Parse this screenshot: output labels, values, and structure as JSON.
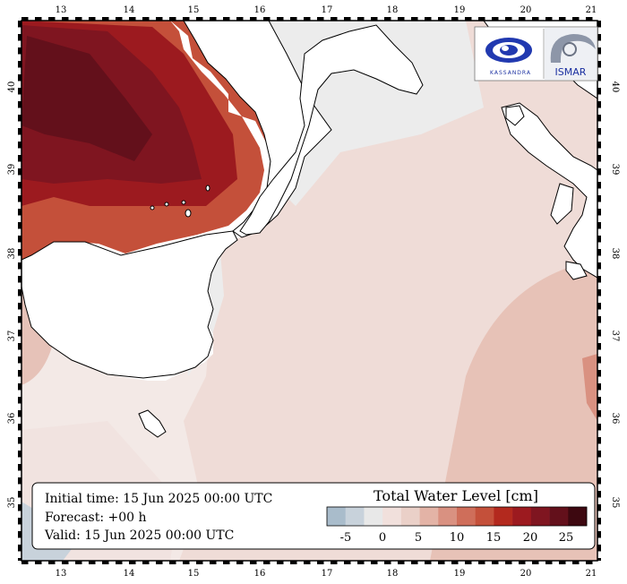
{
  "map": {
    "lon_labels": [
      "13",
      "14",
      "15",
      "16",
      "17",
      "18",
      "19",
      "20",
      "21"
    ],
    "lat_labels": [
      "40",
      "39",
      "38",
      "37",
      "36",
      "35"
    ]
  },
  "info_box": {
    "initial_time": "Initial time: 15 Jun 2025 00:00 UTC",
    "forecast": "Forecast: +00 h",
    "valid": "Valid: 15 Jun 2025 00:00 UTC"
  },
  "legend": {
    "title": "Total Water Level [cm]",
    "tick_labels": [
      "-5",
      "0",
      "5",
      "10",
      "15",
      "20",
      "25"
    ],
    "colors": [
      "#a9bccb",
      "#c8d2db",
      "#e8e8e8",
      "#f1e0dc",
      "#ead0c8",
      "#e3b3a6",
      "#d99181",
      "#cf6e5a",
      "#c4503a",
      "#b3291e",
      "#9c1a1f",
      "#7f1520",
      "#63101b",
      "#3d0810"
    ]
  },
  "logos": {
    "left_icon": "kassandra-logo",
    "left_text": "KASSANDRA",
    "right_icon": "ismar-logo",
    "right_text": "ISMAR"
  },
  "colors": {
    "sea_base": "#efdcd7",
    "sea_light": "#f3e9e6",
    "sea_neutral": "#ececec",
    "surge_mid": "#c4503a",
    "surge_high": "#7f1520",
    "surge_max": "#63101b"
  }
}
